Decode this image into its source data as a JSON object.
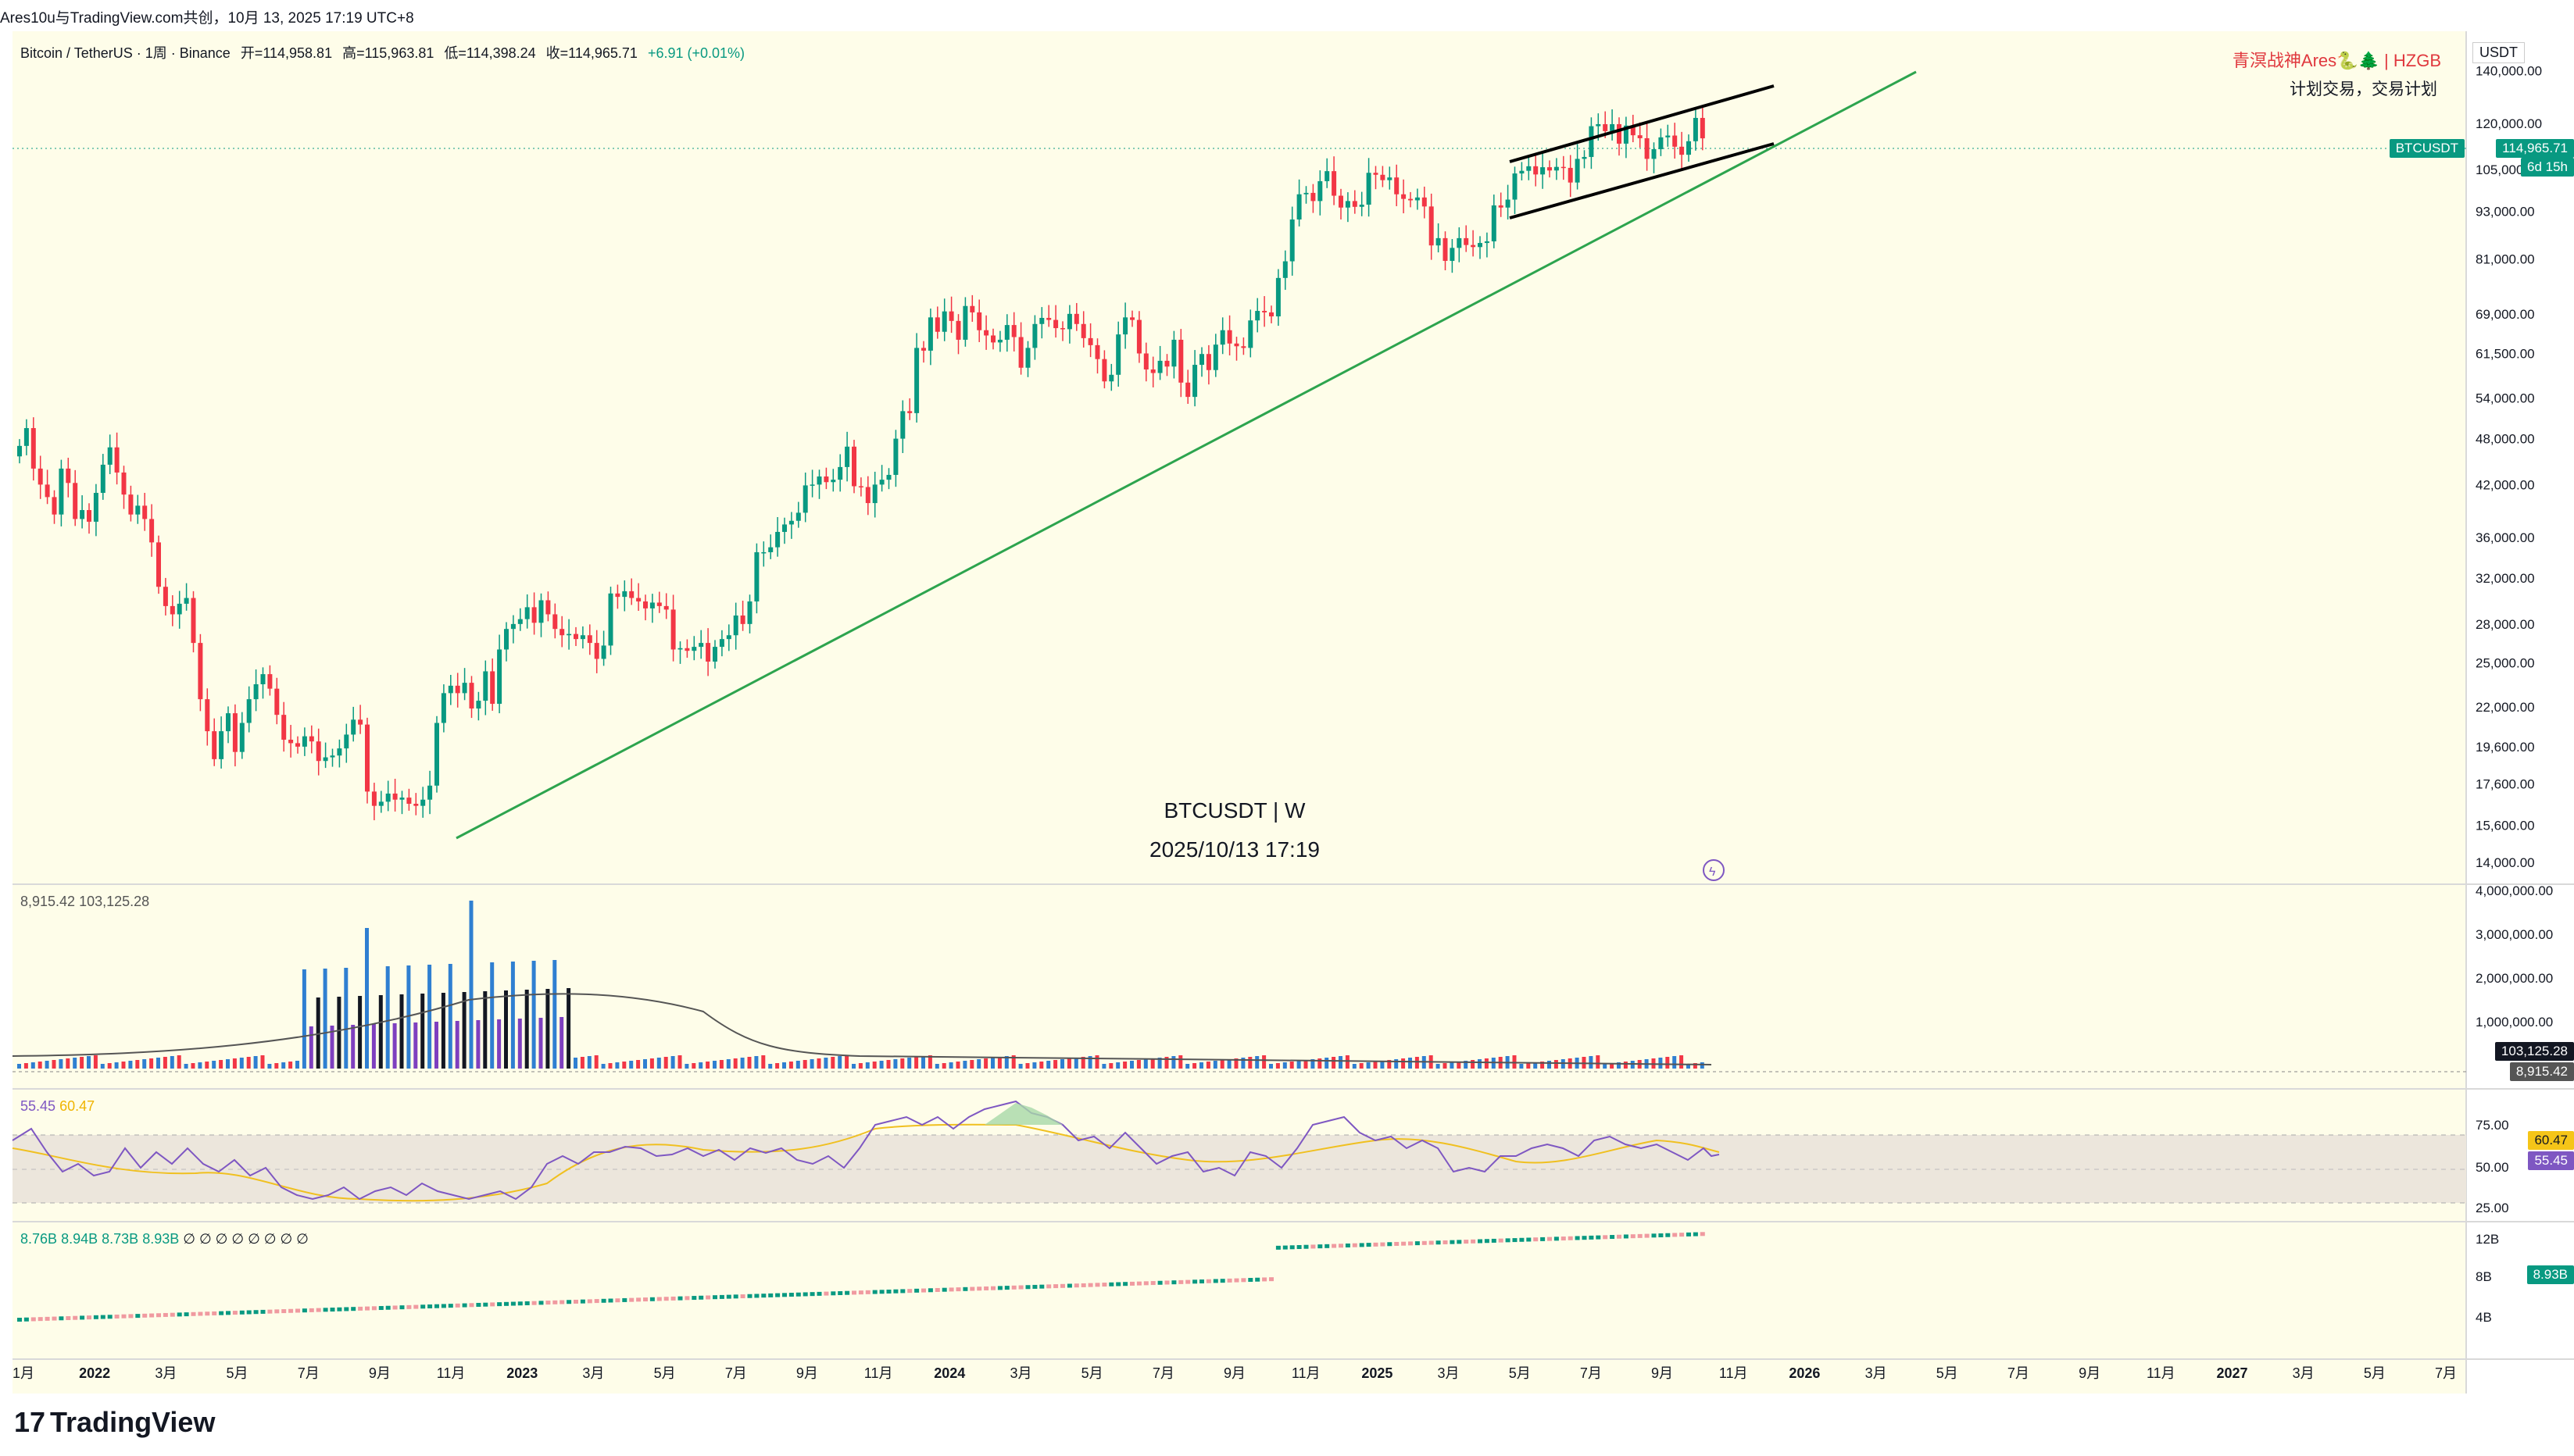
{
  "header": {
    "topline": "Ares10u与TradingView.com共创，10月 13, 2025 17:19 UTC+8"
  },
  "legend": {
    "symbol": "Bitcoin / TetherUS · 1周 · Binance",
    "open": "开=114,958.81",
    "high": "高=115,963.81",
    "low": "低=114,398.24",
    "close": "收=114,965.71",
    "change": "+6.91 (+0.01%)"
  },
  "watermark": {
    "line1": "青溟战神Ares🐍🌲 | HZGB",
    "line2": "计划交易，交易计划"
  },
  "center": {
    "symbol": "BTCUSDT | W",
    "time": "2025/10/13 17:19"
  },
  "currency": "USDT",
  "price_axis": [
    "140,000.00",
    "120,000.00",
    "105,000.00",
    "93,000.00",
    "81,000.00",
    "69,000.00",
    "61,500.00",
    "54,000.00",
    "48,000.00",
    "42,000.00",
    "36,000.00",
    "32,000.00",
    "28,000.00",
    "25,000.00",
    "22,000.00",
    "19,600.00",
    "17,600.00",
    "15,600.00",
    "14,000.00"
  ],
  "last_price": {
    "label": "BTCUSDT",
    "value": "114,965.71",
    "countdown": "6d 15h"
  },
  "volume": {
    "legend": [
      "8,915.42",
      "103,125.28"
    ],
    "axis": [
      "4,000,000.00",
      "3,000,000.00",
      "2,000,000.00",
      "1,000,000.00"
    ],
    "tag_ma": "103,125.28",
    "tag_vol": "8,915.42"
  },
  "rsi": {
    "legend": [
      "55.45",
      "60.47"
    ],
    "axis": [
      "75.00",
      "50.00",
      "25.00"
    ],
    "tag_ma": "60.47",
    "tag_rsi": "55.45"
  },
  "ind3": {
    "legend": [
      "8.76B",
      "8.94B",
      "8.73B",
      "8.93B",
      "∅",
      "∅",
      "∅",
      "∅",
      "∅",
      "∅",
      "∅",
      "∅"
    ],
    "axis": [
      "12B",
      "8B",
      "4B"
    ],
    "tag": "8.93B"
  },
  "time_axis": [
    "1月",
    "2022",
    "3月",
    "5月",
    "7月",
    "9月",
    "11月",
    "2023",
    "3月",
    "5月",
    "7月",
    "9月",
    "11月",
    "2024",
    "3月",
    "5月",
    "7月",
    "9月",
    "11月",
    "2025",
    "3月",
    "5月",
    "7月",
    "9月",
    "11月",
    "2026",
    "3月",
    "5月",
    "7月",
    "9月",
    "11月",
    "2027",
    "3月",
    "5月",
    "7月"
  ],
  "brand": "TradingView",
  "colors": {
    "up": "#089981",
    "down": "#f23645",
    "bg": "#fefde9",
    "trend": "#2da44e"
  },
  "chart_data": {
    "type": "candlestick",
    "title": "Bitcoin / TetherUS · 1周 · Binance",
    "y_scale": "log",
    "ylim": [
      13500,
      150000
    ],
    "closes": [
      47000,
      49500,
      44000,
      42000,
      40500,
      38500,
      44000,
      42200,
      38000,
      39000,
      37700,
      41000,
      44500,
      46800,
      43500,
      40800,
      38500,
      39500,
      38000,
      35500,
      31200,
      29500,
      28800,
      29700,
      30200,
      26500,
      22500,
      20500,
      18900,
      20500,
      21600,
      19300,
      21000,
      22500,
      23500,
      24200,
      23200,
      21500,
      20000,
      19800,
      19600,
      20200,
      19900,
      18800,
      19000,
      19100,
      19500,
      20300,
      21200,
      20900,
      17200,
      16500,
      16700,
      17100,
      16800,
      16900,
      16600,
      16500,
      16800,
      17500,
      21000,
      22900,
      23400,
      22900,
      23600,
      21900,
      22400,
      24400,
      22200,
      26000,
      27600,
      28000,
      28400,
      29400,
      28100,
      30000,
      28800,
      27600,
      27100,
      27200,
      26800,
      27100,
      26500,
      25300,
      26300,
      30600,
      30300,
      30800,
      30200,
      29900,
      29300,
      29800,
      29500,
      29200,
      26000,
      26100,
      25900,
      26200,
      26500,
      25100,
      26200,
      26800,
      27100,
      28700,
      28000,
      29900,
      34500,
      34500,
      35000,
      36600,
      37400,
      37800,
      38700,
      41900,
      42000,
      43000,
      42300,
      42600,
      44200,
      46900,
      41800,
      41700,
      39800,
      42000,
      42600,
      43200,
      48000,
      52000,
      51700,
      62500,
      62000,
      68300,
      65500,
      69500,
      67600,
      64000,
      70600,
      69300,
      65800,
      64800,
      63500,
      64000,
      66800,
      64500,
      59000,
      62500,
      67000,
      68200,
      67800,
      66200,
      66000,
      69000,
      67000,
      64300,
      63000,
      60500,
      56700,
      57800,
      65000,
      68300,
      67800,
      61500,
      58700,
      58100,
      60200,
      59200,
      64000,
      56500,
      54200,
      59500,
      61400,
      58600,
      63100,
      65800,
      63300,
      62800,
      62500,
      67700,
      69600,
      69300,
      68500,
      76600,
      80400,
      90800,
      97700,
      98100,
      95800,
      101500,
      104500,
      97300,
      94000,
      95800,
      94200,
      94800,
      104000,
      103400,
      101800,
      102600,
      97700,
      96400,
      96000,
      96800,
      94300,
      84200,
      86000,
      80500,
      83600,
      86000,
      84300,
      83800,
      84800,
      85200,
      94600,
      94000,
      96200,
      103800,
      104600,
      106000,
      103500,
      105700,
      104700,
      105800,
      105500,
      101100,
      108300,
      108900,
      119100,
      119800,
      117400,
      119800,
      113200,
      119300,
      116000,
      115000,
      108300,
      111400,
      115300,
      115900,
      112200,
      109600,
      114000,
      122000,
      114965.71
    ],
    "series_extra": {
      "volume_note": "weekly volume with moving average",
      "rsi": {
        "last": 55.45,
        "ma": 60.47
      },
      "indicator3_last": "8.93B"
    },
    "lines": [
      {
        "name": "support trendline",
        "from": [
          "2022-11",
          15600
        ],
        "to": [
          "2025-10",
          118000
        ]
      },
      {
        "name": "channel upper",
        "from": [
          "2025-04",
          100000
        ],
        "to": [
          "2025-10",
          135000
        ]
      },
      {
        "name": "channel lower",
        "from": [
          "2025-04",
          91000
        ],
        "to": [
          "2025-10",
          118000
        ]
      }
    ]
  }
}
